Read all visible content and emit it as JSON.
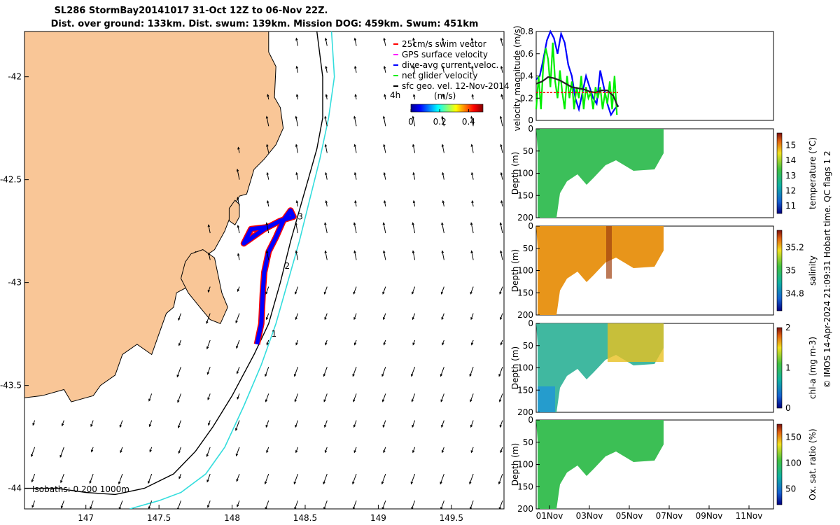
{
  "title": {
    "line1": "SL286 StormBay20141017 31-Oct 12Z to 06-Nov 22Z.",
    "line2": "Dist. over ground: 133km. Dist. swum: 139km. Mission DOG: 459km. Swum: 451km"
  },
  "side_label": "© IMOS 14-Apr-2024 21:09:31 Hobart time. QC flags 1  2",
  "colors": {
    "land": "#f9c697",
    "glider_track_fill": "#ff0000",
    "glider_track_blue": "#0000ff",
    "isobath_200": "#000000",
    "isobath_1000": "#33dddd",
    "panel_bg": "#ffffff"
  },
  "chart_data": [
    {
      "type": "map",
      "title": "SL286 StormBay20141017",
      "xlim": [
        146.58,
        149.86
      ],
      "ylim": [
        -44.1,
        -41.78
      ],
      "x_ticks": [
        147,
        147.5,
        148,
        148.5,
        149,
        149.5
      ],
      "x_tick_labels": [
        "147",
        "147.5",
        "148",
        "148.5",
        "149",
        "149.5"
      ],
      "y_ticks": [
        -42,
        -42.5,
        -43,
        -43.5,
        -44
      ],
      "y_tick_labels": [
        "-42",
        "-42.5",
        "-43",
        "-43.5",
        "-44"
      ],
      "legend": {
        "placement": "top-right",
        "entries": [
          {
            "label": "25cm/s swim vector",
            "color": "#ff0000"
          },
          {
            "label": "GPS surface velocity",
            "color": "#ff00ff"
          },
          {
            "label": "dive-avg current veloc.",
            "color": "#0000ff"
          },
          {
            "label": "net glider velocity",
            "color": "#00ee00"
          },
          {
            "label": "sfc geo. vel. 12-Nov-2014",
            "color": "#000000"
          }
        ]
      },
      "colorbar": {
        "label": "(m/s)",
        "ticks": [
          "0",
          "0.2",
          "0.4"
        ],
        "range": [
          0,
          0.5
        ],
        "prefix": "4h"
      },
      "isobath_label": "Isobaths: 0   200  1000m",
      "track_markers": [
        {
          "label": "1",
          "lon": 148.24,
          "lat": -43.25
        },
        {
          "label": "2",
          "lon": 148.33,
          "lat": -42.92
        },
        {
          "label": "3",
          "lon": 148.42,
          "lat": -42.68
        }
      ],
      "track": [
        [
          148.17,
          -43.3
        ],
        [
          148.2,
          -43.2
        ],
        [
          148.21,
          -43.05
        ],
        [
          148.22,
          -42.95
        ],
        [
          148.25,
          -42.85
        ],
        [
          148.3,
          -42.78
        ],
        [
          148.35,
          -42.7
        ],
        [
          148.4,
          -42.65
        ],
        [
          148.42,
          -42.68
        ],
        [
          148.33,
          -42.7
        ],
        [
          148.22,
          -42.74
        ],
        [
          148.08,
          -42.81
        ],
        [
          148.13,
          -42.74
        ],
        [
          148.25,
          -42.73
        ]
      ],
      "land_coast": [
        [
          146.58,
          -41.78
        ],
        [
          148.25,
          -41.78
        ],
        [
          148.25,
          -41.88
        ],
        [
          148.3,
          -41.95
        ],
        [
          148.29,
          -42.1
        ],
        [
          148.33,
          -42.15
        ],
        [
          148.35,
          -42.25
        ],
        [
          148.3,
          -42.33
        ],
        [
          148.22,
          -42.4
        ],
        [
          148.15,
          -42.45
        ],
        [
          148.1,
          -42.57
        ],
        [
          148.05,
          -42.58
        ],
        [
          148.02,
          -42.62
        ],
        [
          147.95,
          -42.75
        ],
        [
          147.88,
          -42.84
        ],
        [
          147.82,
          -42.87
        ],
        [
          147.75,
          -42.85
        ],
        [
          147.75,
          -42.95
        ],
        [
          147.7,
          -43.02
        ],
        [
          147.62,
          -43.05
        ],
        [
          147.6,
          -43.12
        ],
        [
          147.55,
          -43.15
        ],
        [
          147.5,
          -43.25
        ],
        [
          147.45,
          -43.35
        ],
        [
          147.35,
          -43.3
        ],
        [
          147.25,
          -43.35
        ],
        [
          147.2,
          -43.45
        ],
        [
          147.1,
          -43.5
        ],
        [
          147.05,
          -43.55
        ],
        [
          146.9,
          -43.58
        ],
        [
          146.85,
          -43.52
        ],
        [
          146.7,
          -43.55
        ],
        [
          146.58,
          -43.56
        ]
      ],
      "peninsula": [
        [
          147.72,
          -42.86
        ],
        [
          147.8,
          -42.84
        ],
        [
          147.88,
          -42.88
        ],
        [
          147.9,
          -42.95
        ],
        [
          147.93,
          -43.05
        ],
        [
          147.97,
          -43.12
        ],
        [
          147.92,
          -43.2
        ],
        [
          147.85,
          -43.18
        ],
        [
          147.78,
          -43.12
        ],
        [
          147.7,
          -43.05
        ],
        [
          147.65,
          -42.98
        ],
        [
          147.68,
          -42.9
        ]
      ],
      "island": [
        [
          148.02,
          -42.6
        ],
        [
          148.05,
          -42.62
        ],
        [
          148.05,
          -42.68
        ],
        [
          148.02,
          -42.72
        ],
        [
          147.98,
          -42.7
        ],
        [
          147.98,
          -42.64
        ]
      ],
      "iso200": [
        [
          148.58,
          -41.78
        ],
        [
          148.62,
          -42.0
        ],
        [
          148.62,
          -42.2
        ],
        [
          148.58,
          -42.35
        ],
        [
          148.52,
          -42.5
        ],
        [
          148.46,
          -42.65
        ],
        [
          148.4,
          -42.8
        ],
        [
          148.33,
          -43.0
        ],
        [
          148.25,
          -43.2
        ],
        [
          148.15,
          -43.35
        ],
        [
          148.0,
          -43.55
        ],
        [
          147.87,
          -43.7
        ],
        [
          147.75,
          -43.82
        ],
        [
          147.6,
          -43.93
        ],
        [
          147.4,
          -44.0
        ],
        [
          147.2,
          -44.03
        ],
        [
          147.0,
          -44.02
        ],
        [
          146.8,
          -44.0
        ],
        [
          146.58,
          -44.0
        ]
      ],
      "iso1000": [
        [
          148.68,
          -41.78
        ],
        [
          148.7,
          -42.0
        ],
        [
          148.66,
          -42.2
        ],
        [
          148.6,
          -42.4
        ],
        [
          148.53,
          -42.6
        ],
        [
          148.46,
          -42.8
        ],
        [
          148.38,
          -43.0
        ],
        [
          148.3,
          -43.2
        ],
        [
          148.2,
          -43.4
        ],
        [
          148.08,
          -43.6
        ],
        [
          147.95,
          -43.8
        ],
        [
          147.82,
          -43.93
        ],
        [
          147.65,
          -44.02
        ],
        [
          147.5,
          -44.06
        ],
        [
          147.3,
          -44.1
        ]
      ]
    },
    {
      "type": "line",
      "ylabel": "velocity magnitude (m/s)",
      "ylim": [
        0,
        0.8
      ],
      "y_ticks": [
        "0",
        "0.2",
        "0.4",
        "0.6",
        "0.8"
      ],
      "x_range_days": [
        0,
        20
      ],
      "series": [
        {
          "name": "dive-avg current veloc.",
          "color": "#0000ff",
          "x": [
            0,
            0.3,
            0.6,
            0.9,
            1.2,
            1.5,
            1.8,
            2.1,
            2.4,
            2.7,
            3.0,
            3.3,
            3.6,
            3.9,
            4.2,
            4.5,
            4.8,
            5.1,
            5.4,
            5.7,
            6.0,
            6.3,
            6.6,
            6.9
          ],
          "values": [
            0.37,
            0.4,
            0.55,
            0.72,
            0.8,
            0.74,
            0.6,
            0.78,
            0.7,
            0.5,
            0.4,
            0.2,
            0.1,
            0.25,
            0.4,
            0.3,
            0.2,
            0.15,
            0.45,
            0.3,
            0.15,
            0.05,
            0.1,
            0.14
          ]
        },
        {
          "name": "net glider velocity",
          "color": "#00ee00",
          "x": [
            0,
            0.2,
            0.4,
            0.6,
            0.8,
            1.0,
            1.2,
            1.4,
            1.6,
            1.8,
            2.0,
            2.2,
            2.4,
            2.6,
            2.8,
            3.0,
            3.2,
            3.4,
            3.6,
            3.8,
            4.0,
            4.2,
            4.4,
            4.6,
            4.8,
            5.0,
            5.2,
            5.4,
            5.6,
            5.8,
            6.0,
            6.2,
            6.4,
            6.6,
            6.8
          ],
          "values": [
            0.1,
            0.4,
            0.1,
            0.5,
            0.65,
            0.55,
            0.3,
            0.7,
            0.35,
            0.2,
            0.45,
            0.25,
            0.1,
            0.4,
            0.2,
            0.35,
            0.1,
            0.3,
            0.2,
            0.4,
            0.1,
            0.3,
            0.2,
            0.25,
            0.1,
            0.3,
            0.2,
            0.3,
            0.1,
            0.25,
            0.15,
            0.35,
            0.1,
            0.4,
            0.05
          ]
        },
        {
          "name": "sfc geo. vel.",
          "color": "#222222",
          "x": [
            0,
            0.5,
            1,
            1.5,
            2,
            2.5,
            3,
            3.5,
            4,
            4.5,
            5,
            5.5,
            6,
            6.5,
            6.9
          ],
          "values": [
            0.33,
            0.35,
            0.39,
            0.38,
            0.36,
            0.33,
            0.3,
            0.29,
            0.28,
            0.26,
            0.25,
            0.27,
            0.27,
            0.22,
            0.12
          ]
        },
        {
          "name": "swim",
          "color": "#ff0000",
          "x": [
            0,
            6.9
          ],
          "values": [
            0.25,
            0.25
          ]
        }
      ]
    },
    {
      "type": "heatmap",
      "ylabel": "Depth (m)",
      "y_ticks": [
        "0",
        "50",
        "100",
        "150",
        "200"
      ],
      "colorbar_label": "temperature (°C)",
      "colorbar_ticks": [
        "11",
        "12",
        "13",
        "14",
        "15"
      ],
      "colorbar_range": [
        10.5,
        15.8
      ]
    },
    {
      "type": "heatmap",
      "ylabel": "Depth (m)",
      "y_ticks": [
        "0",
        "50",
        "100",
        "150",
        "200"
      ],
      "colorbar_label": "salinity",
      "colorbar_ticks": [
        "34.8",
        "35",
        "35.2"
      ],
      "colorbar_range": [
        34.65,
        35.35
      ]
    },
    {
      "type": "heatmap",
      "ylabel": "Depth (m)",
      "y_ticks": [
        "0",
        "50",
        "100",
        "150",
        "200"
      ],
      "colorbar_label": "chl-a (mg m-3)",
      "colorbar_ticks": [
        "0",
        "1",
        "2"
      ],
      "colorbar_range": [
        0,
        2
      ]
    },
    {
      "type": "heatmap",
      "ylabel": "Depth (m)",
      "y_ticks": [
        "0",
        "50",
        "100",
        "150",
        "200"
      ],
      "colorbar_label": "Ox. sat. ratio (%)",
      "colorbar_ticks": [
        "50",
        "100",
        "150"
      ],
      "colorbar_range": [
        20,
        175
      ],
      "x_tick_labels": [
        "01Nov",
        "03Nov",
        "05Nov",
        "07Nov",
        "09Nov",
        "11Nov"
      ]
    }
  ]
}
